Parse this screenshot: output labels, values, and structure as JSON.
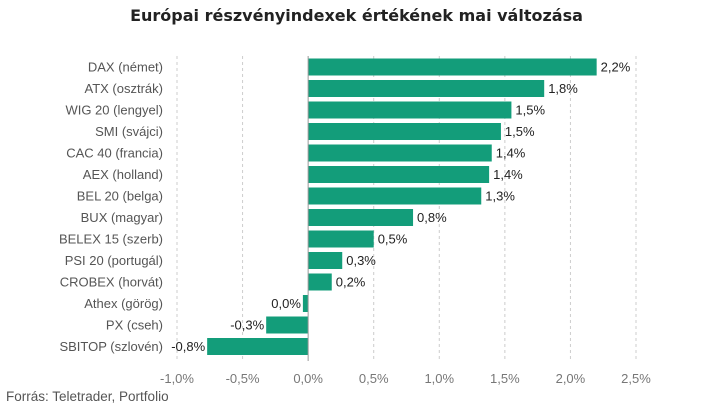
{
  "title": "Európai részvényindexek értékének mai változása",
  "source": "Forrás: Teletrader, Portfolio",
  "colors": {
    "bar": "#139d7a",
    "grid": "#cccccc",
    "zero_line": "#999999"
  },
  "chart_data": {
    "type": "bar",
    "orientation": "horizontal",
    "title": "Európai részvényindexek értékének mai változása",
    "xlabel": "",
    "ylabel": "",
    "xlim": [
      -1.0,
      2.5
    ],
    "grid": true,
    "categories": [
      "DAX (német)",
      "ATX (osztrák)",
      "WIG 20 (lengyel)",
      "SMI (svájci)",
      "CAC 40 (francia)",
      "AEX (holland)",
      "BEL 20 (belga)",
      "BUX (magyar)",
      "BELEX 15 (szerb)",
      "PSI 20 (portugál)",
      "CROBEX (horvát)",
      "Athex (görög)",
      "PX (cseh)",
      "SBITOP (szlovén)"
    ],
    "values": [
      2.2,
      1.8,
      1.55,
      1.47,
      1.4,
      1.38,
      1.32,
      0.8,
      0.5,
      0.26,
      0.18,
      -0.04,
      -0.32,
      -0.77
    ],
    "value_labels": [
      "2,2%",
      "1,8%",
      "1,5%",
      "1,5%",
      "1,4%",
      "1,4%",
      "1,3%",
      "0,8%",
      "0,5%",
      "0,3%",
      "0,2%",
      "0,0%",
      "-0,3%",
      "-0,8%"
    ],
    "ticks": [
      -1.0,
      -0.5,
      0.0,
      0.5,
      1.0,
      1.5,
      2.0,
      2.5
    ],
    "tick_labels": [
      "-1,0%",
      "-0,5%",
      "0,0%",
      "0,5%",
      "1,0%",
      "1,5%",
      "2,0%",
      "2,5%"
    ]
  }
}
